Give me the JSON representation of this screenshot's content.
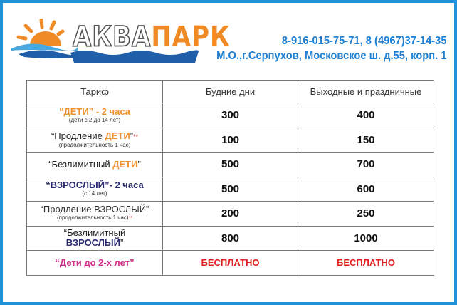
{
  "header": {
    "logo_part1": "АКВА",
    "logo_part2": "ПАРК",
    "phone": "8-916-015-75-71, 8 (4967)37-14-35",
    "address": "М.О.,г.Серпухов, Московское ш. д.55, корп. 1"
  },
  "table": {
    "columns": [
      "Тариф",
      "Будние дни",
      "Выходные и праздничные"
    ],
    "rows": [
      {
        "a": "“ДЕТИ”",
        "b": " - 2 часа",
        "sub": "(дети с 2 до 14 лет)",
        "weekday": "300",
        "weekend": "400"
      },
      {
        "a": "“Продление ",
        "b": "ДЕТИ",
        "c": "”",
        "star": "**",
        "sub": "(продолжительность 1 час)",
        "weekday": "100",
        "weekend": "150"
      },
      {
        "a": "“Безлимитный ",
        "b": "ДЕТИ",
        "c": "”",
        "weekday": "500",
        "weekend": "700"
      },
      {
        "a": "“ВЗРОСЛЫЙ”",
        "b": "- 2 часа",
        "sub": "(с 14 лет)",
        "weekday": "500",
        "weekend": "600"
      },
      {
        "a": "“Продление ВЗРОСЛЫЙ”",
        "sub": "(продолжительность 1 час)",
        "star": "**",
        "weekday": "200",
        "weekend": "250"
      },
      {
        "a": "“Безлимитный",
        "b": "ВЗРОСЛЫЙ",
        "c": "”",
        "weekday": "800",
        "weekend": "1000"
      },
      {
        "a": "“Дети до 2-х лет”",
        "weekday": "БЕСПЛАТНО",
        "weekend": "БЕСПЛАТНО"
      }
    ]
  },
  "colors": {
    "frame": "#1f92d8",
    "orange": "#f0922c",
    "navy": "#2a2a6e",
    "pink": "#d0308a",
    "red": "#e02020"
  }
}
